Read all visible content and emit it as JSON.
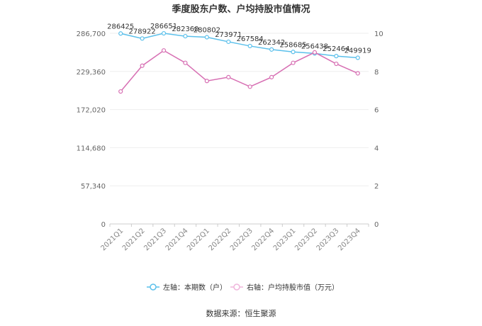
{
  "chart_data": {
    "type": "line",
    "title": "季度股东户数、户均持股市值情况",
    "categories": [
      "2021Q1",
      "2021Q2",
      "2021Q3",
      "2021Q4",
      "2022Q1",
      "2022Q2",
      "2022Q3",
      "2022Q4",
      "2023Q1",
      "2023Q2",
      "2023Q3",
      "2023Q4"
    ],
    "left_axis": {
      "ylim": [
        0,
        286700
      ],
      "ticks": [
        0,
        57340,
        114680,
        172020,
        229360,
        286700
      ],
      "tick_labels": [
        "0",
        "57,340",
        "114,680",
        "172,020",
        "229,360",
        "286,700"
      ]
    },
    "right_axis": {
      "ylim": [
        0,
        10
      ],
      "ticks": [
        0,
        2,
        4,
        6,
        8,
        10
      ],
      "tick_labels": [
        "0",
        "2",
        "4",
        "6",
        "8",
        "10"
      ]
    },
    "series": [
      {
        "name": "左轴：本期数（户）",
        "axis": "left",
        "color": "#5bc0eb",
        "values": [
          286425,
          278922,
          286651,
          282360,
          280802,
          273971,
          267584,
          262342,
          258685,
          256438,
          252464,
          249919
        ],
        "labels": [
          "286425",
          "278922",
          "286651",
          "282360",
          "280802",
          "273971",
          "267584",
          "262342",
          "258685",
          "256438",
          "252464",
          "249919"
        ]
      },
      {
        "name": "右轴：户均持股市值（万元）",
        "axis": "right",
        "color": "#d76fb3",
        "values": [
          6.95,
          8.3,
          9.1,
          8.45,
          7.5,
          7.7,
          7.2,
          7.7,
          8.45,
          9.0,
          8.4,
          7.9
        ]
      }
    ],
    "grid": true,
    "legend_position": "bottom",
    "source": "数据来源：恒生聚源"
  }
}
